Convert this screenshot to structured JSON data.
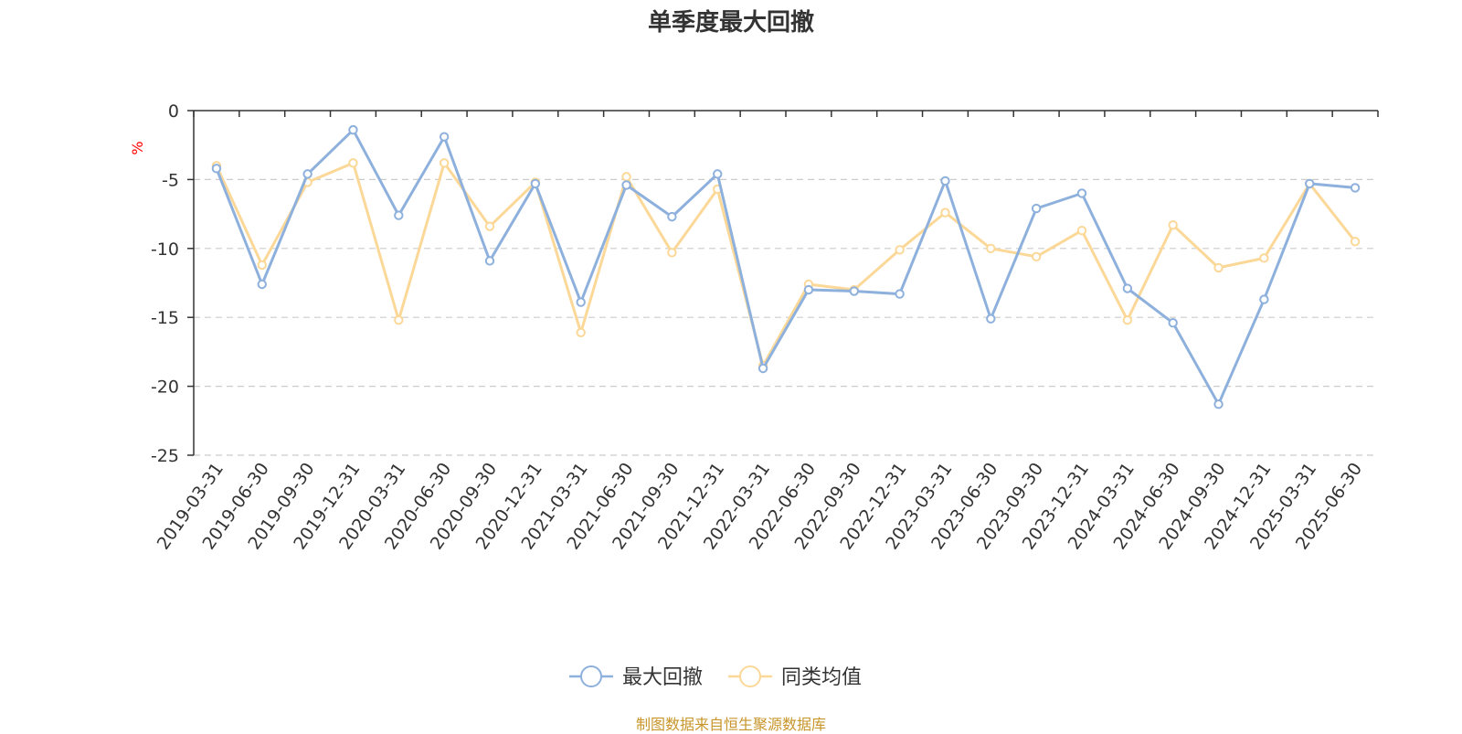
{
  "chart_data": {
    "type": "line",
    "title": "单季度最大回撤",
    "ylabel": "%",
    "ylim": [
      -25,
      0
    ],
    "yticks": [
      0,
      -5,
      -10,
      -15,
      -20,
      -25
    ],
    "grid": "horizontal-dashed",
    "legend_position": "bottom-center",
    "categories": [
      "2019-03-31",
      "2019-06-30",
      "2019-09-30",
      "2019-12-31",
      "2020-03-31",
      "2020-06-30",
      "2020-09-30",
      "2020-12-31",
      "2021-03-31",
      "2021-06-30",
      "2021-09-30",
      "2021-12-31",
      "2022-03-31",
      "2022-06-30",
      "2022-09-30",
      "2022-12-31",
      "2023-03-31",
      "2023-06-30",
      "2023-09-30",
      "2023-12-31",
      "2024-03-31",
      "2024-06-30",
      "2024-09-30",
      "2024-12-31",
      "2025-03-31",
      "2025-06-30"
    ],
    "series": [
      {
        "name": "最大回撤",
        "color": "#8eb0dc",
        "values": [
          -4.2,
          -12.6,
          -4.6,
          -1.4,
          -7.6,
          -1.9,
          -10.9,
          -5.3,
          -13.9,
          -5.4,
          -7.7,
          -4.6,
          -18.7,
          -13.0,
          -13.1,
          -13.3,
          -5.1,
          -15.1,
          -7.1,
          -6.0,
          -12.9,
          -15.4,
          -21.3,
          -13.7,
          -5.3,
          -5.6
        ]
      },
      {
        "name": "同类均值",
        "color": "#fbd898",
        "values": [
          -4.0,
          -11.2,
          -5.2,
          -3.8,
          -15.2,
          -3.8,
          -8.4,
          -5.2,
          -16.1,
          -4.8,
          -10.3,
          -5.7,
          -18.5,
          -12.6,
          -13.0,
          -10.1,
          -7.4,
          -10.0,
          -10.6,
          -8.7,
          -15.2,
          -8.3,
          -11.4,
          -10.7,
          -5.3,
          -9.5
        ]
      }
    ]
  },
  "footer": {
    "source": "制图数据来自恒生聚源数据库"
  },
  "colors": {
    "axis": "#333333",
    "grid": "#cccccc",
    "unit_label": "#ff0000",
    "source": "#c8952a"
  }
}
